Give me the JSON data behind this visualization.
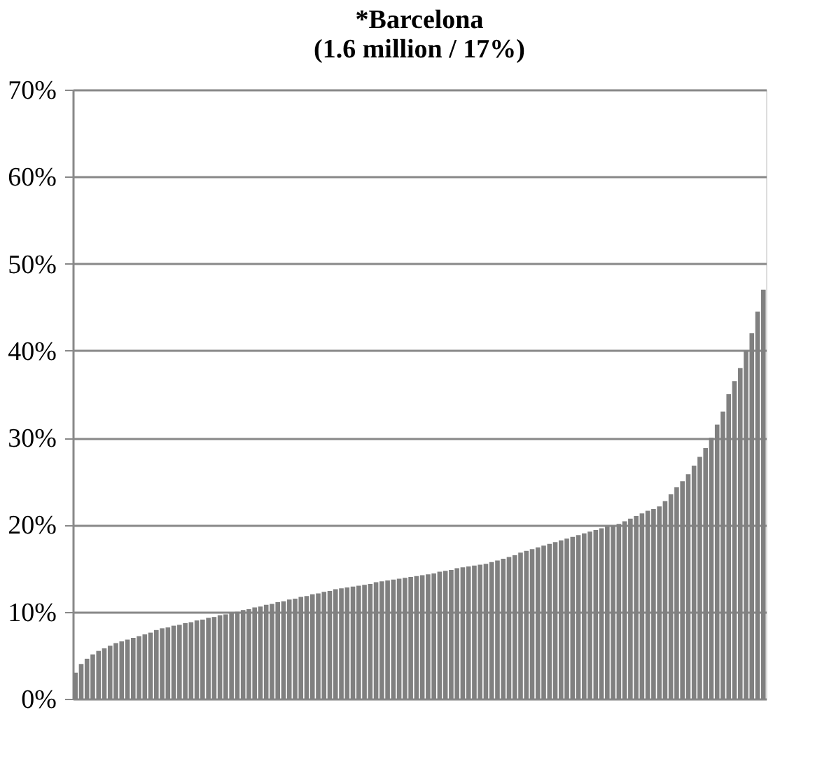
{
  "chart_data": {
    "type": "bar",
    "title": [
      "*Barcelona",
      "(1.6 million / 17%)"
    ],
    "color": "#808080",
    "ylim": [
      0,
      70
    ],
    "yticks": [
      {
        "value": 0,
        "label": "0%"
      },
      {
        "value": 10,
        "label": "10%"
      },
      {
        "value": 20,
        "label": "20%"
      },
      {
        "value": 30,
        "label": "30%"
      },
      {
        "value": 40,
        "label": "40%"
      },
      {
        "value": 50,
        "label": "50%"
      },
      {
        "value": 60,
        "label": "60%"
      },
      {
        "value": 70,
        "label": "70%"
      }
    ],
    "grid": "y",
    "tick_labels": "y",
    "categories": [
      null,
      null,
      null,
      null,
      null,
      null,
      null,
      null,
      null,
      null,
      null,
      null,
      null,
      null,
      null,
      null,
      null,
      null,
      null,
      null,
      null,
      null,
      null,
      null,
      null,
      null,
      null,
      null,
      null,
      null,
      null,
      null,
      null,
      null,
      null,
      null,
      null,
      null,
      null,
      null,
      null,
      null,
      null,
      null,
      null,
      null,
      null,
      null,
      null,
      null,
      null,
      null,
      null,
      null,
      null,
      null,
      null,
      null,
      null,
      null,
      null,
      null,
      null,
      null,
      null,
      null,
      null,
      null,
      null,
      null,
      null,
      null,
      null,
      null,
      null,
      null,
      null,
      null,
      null,
      null,
      null,
      null,
      null,
      null,
      null,
      null,
      null,
      null,
      null,
      null,
      null,
      null,
      null,
      null,
      null,
      null,
      null,
      null,
      null,
      null,
      null,
      null,
      null,
      null,
      null,
      null,
      null,
      null,
      null,
      null,
      null,
      null,
      null,
      null,
      null,
      null,
      null,
      null,
      null,
      null
    ],
    "values": [
      3.0,
      4.0,
      4.6,
      5.1,
      5.5,
      5.8,
      6.1,
      6.4,
      6.6,
      6.8,
      7.0,
      7.2,
      7.4,
      7.6,
      7.9,
      8.1,
      8.2,
      8.4,
      8.5,
      8.7,
      8.8,
      9.0,
      9.1,
      9.3,
      9.4,
      9.6,
      9.7,
      9.9,
      10.0,
      10.2,
      10.3,
      10.5,
      10.6,
      10.8,
      10.9,
      11.1,
      11.2,
      11.4,
      11.5,
      11.7,
      11.8,
      12.0,
      12.1,
      12.3,
      12.4,
      12.6,
      12.7,
      12.8,
      12.9,
      13.0,
      13.1,
      13.2,
      13.4,
      13.5,
      13.6,
      13.7,
      13.8,
      13.9,
      14.0,
      14.1,
      14.2,
      14.3,
      14.4,
      14.6,
      14.7,
      14.8,
      15.0,
      15.1,
      15.2,
      15.3,
      15.4,
      15.5,
      15.7,
      15.9,
      16.1,
      16.3,
      16.5,
      16.8,
      17.0,
      17.2,
      17.4,
      17.6,
      17.8,
      18.0,
      18.2,
      18.4,
      18.6,
      18.8,
      19.0,
      19.2,
      19.4,
      19.6,
      19.8,
      19.9,
      20.1,
      20.4,
      20.7,
      21.0,
      21.3,
      21.6,
      21.8,
      22.1,
      22.7,
      23.5,
      24.3,
      25.0,
      25.8,
      26.8,
      27.8,
      28.8,
      30.0,
      31.5,
      33.0,
      35.0,
      36.5,
      38.0,
      40.0,
      42.0,
      44.5,
      47.0
    ]
  }
}
